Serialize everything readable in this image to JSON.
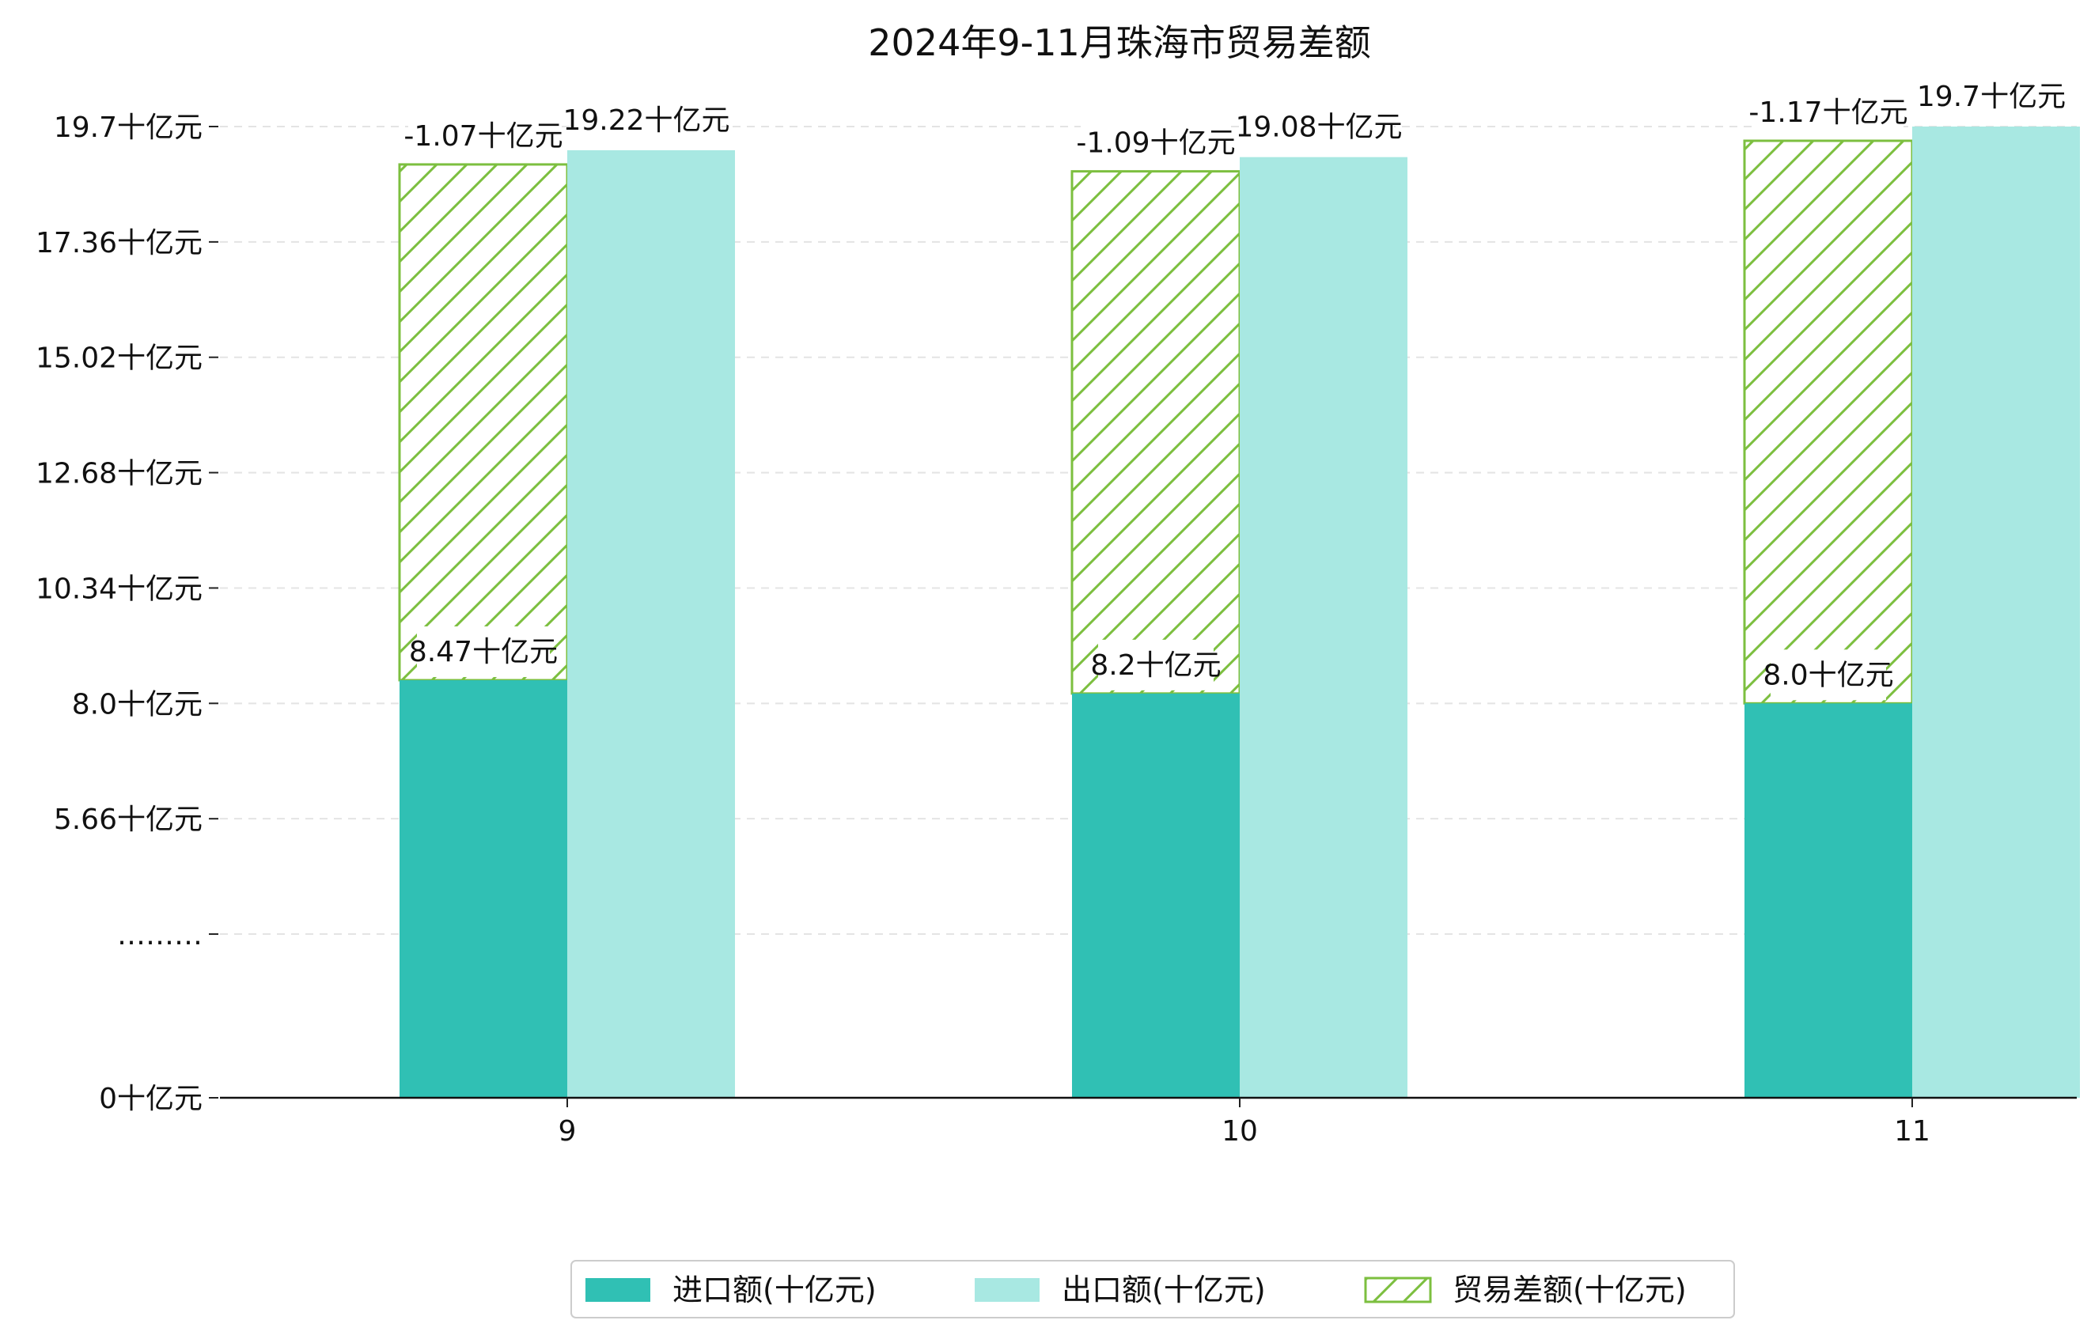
{
  "chart_data": {
    "type": "bar",
    "title": "2024年9-11月珠海市贸易差额",
    "xlabel": "",
    "ylabel": "",
    "categories": [
      "9",
      "10",
      "11"
    ],
    "ylim": [
      0,
      19.7
    ],
    "yticks": [
      0,
      3.32,
      5.66,
      8.0,
      10.34,
      12.68,
      15.02,
      17.36,
      19.7
    ],
    "ytick_labels": [
      "0十亿元",
      "………",
      "5.66十亿元",
      "8.0十亿元",
      "10.34十亿元",
      "12.68十亿元",
      "15.02十亿元",
      "17.36十亿元",
      "19.7十亿元"
    ],
    "grid": "horizontal-dashed",
    "legend_position": "bottom-center",
    "series": [
      {
        "name": "进口额(十亿元)",
        "values": [
          8.47,
          8.2,
          8.0
        ],
        "labels": [
          "8.47十亿元",
          "8.2十亿元",
          "8.0十亿元"
        ],
        "color": "#30c0b4"
      },
      {
        "name": "出口额(十亿元)",
        "values": [
          19.22,
          19.08,
          19.7
        ],
        "labels": [
          "19.22十亿元",
          "19.08十亿元",
          "19.7十亿元"
        ],
        "color": "#a8e8e2"
      },
      {
        "name": "贸易差额(十亿元)",
        "values": [
          -1.07,
          -1.09,
          -1.17
        ],
        "labels": [
          "-1.07十亿元",
          "-1.09十亿元",
          "-1.17十亿元"
        ],
        "color": "#7cbf3f",
        "pattern": "diagonal-hatch"
      }
    ]
  }
}
